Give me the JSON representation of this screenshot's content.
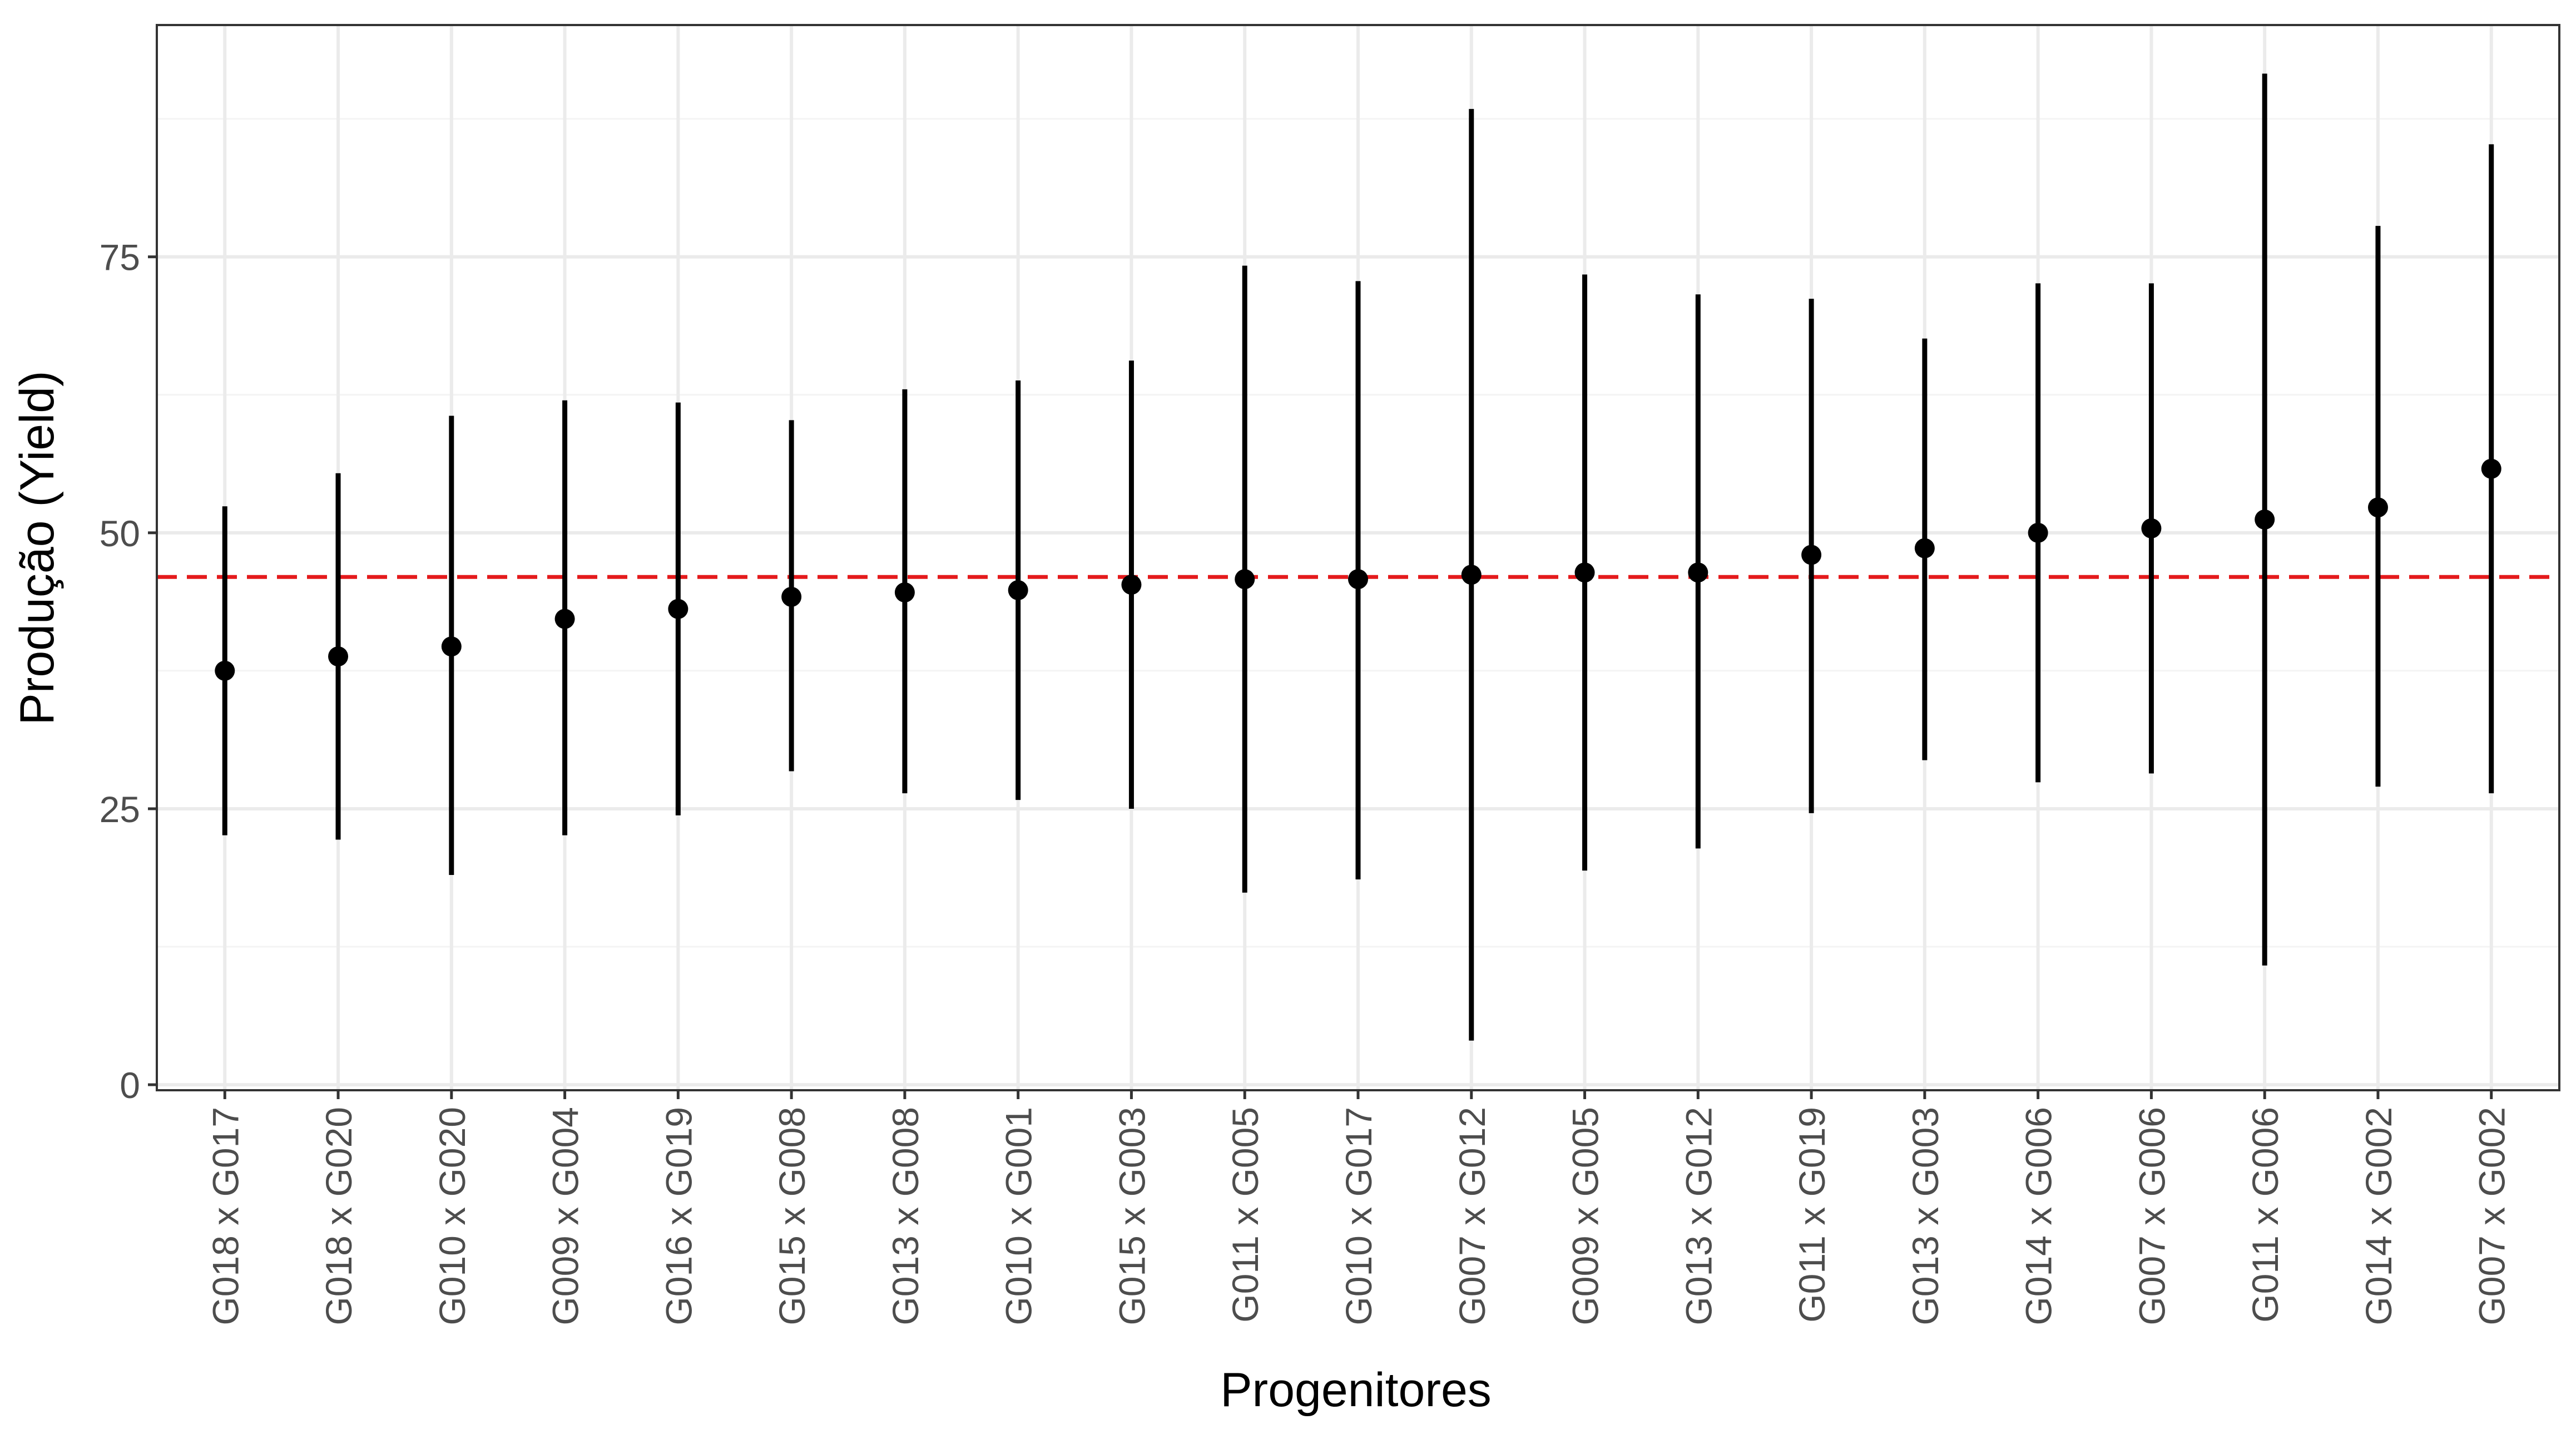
{
  "chart_data": {
    "type": "scatter",
    "xlabel": "Progenitores",
    "ylabel": "Produção (Yield)",
    "ylim": [
      -0.5,
      96
    ],
    "yticks": [
      0,
      25,
      50,
      75
    ],
    "grid": true,
    "reference_line": {
      "value": 46,
      "color": "#e41a1c",
      "style": "dashed"
    },
    "colors": {
      "point": "#000000",
      "errorbar": "#000000",
      "grid_major": "#ebebeb",
      "grid_minor": "#f4f4f4",
      "border": "#333333",
      "tick_label": "#4d4d4d",
      "axis_title": "#000000"
    },
    "categories": [
      "G018 x G017",
      "G018 x G020",
      "G010 x G020",
      "G009 x G004",
      "G016 x G019",
      "G015 x G008",
      "G013 x G008",
      "G010 x G001",
      "G015 x G003",
      "G011 x G005",
      "G010 x G017",
      "G007 x G012",
      "G009 x G005",
      "G013 x G012",
      "G011 x G019",
      "G013 x G003",
      "G014 x G006",
      "G007 x G006",
      "G011 x G006",
      "G014 x G002",
      "G007 x G002"
    ],
    "series": [
      {
        "values": [
          37.5,
          38.8,
          39.7,
          42.2,
          43.1,
          44.2,
          44.6,
          44.8,
          45.3,
          45.8,
          45.8,
          46.2,
          46.4,
          46.4,
          48.0,
          48.6,
          50.0,
          50.4,
          51.2,
          52.3,
          55.8
        ],
        "lower": [
          22.6,
          22.2,
          19.0,
          22.6,
          24.4,
          28.4,
          26.4,
          25.8,
          25.0,
          17.4,
          18.6,
          4.0,
          19.4,
          21.4,
          24.6,
          29.4,
          27.4,
          28.2,
          10.8,
          27.0,
          26.4
        ],
        "upper": [
          52.4,
          55.4,
          60.6,
          62.0,
          61.8,
          60.2,
          63.0,
          63.8,
          65.6,
          74.2,
          72.8,
          88.4,
          73.4,
          71.6,
          71.2,
          67.6,
          72.6,
          72.6,
          91.6,
          77.8,
          85.2
        ]
      }
    ]
  }
}
